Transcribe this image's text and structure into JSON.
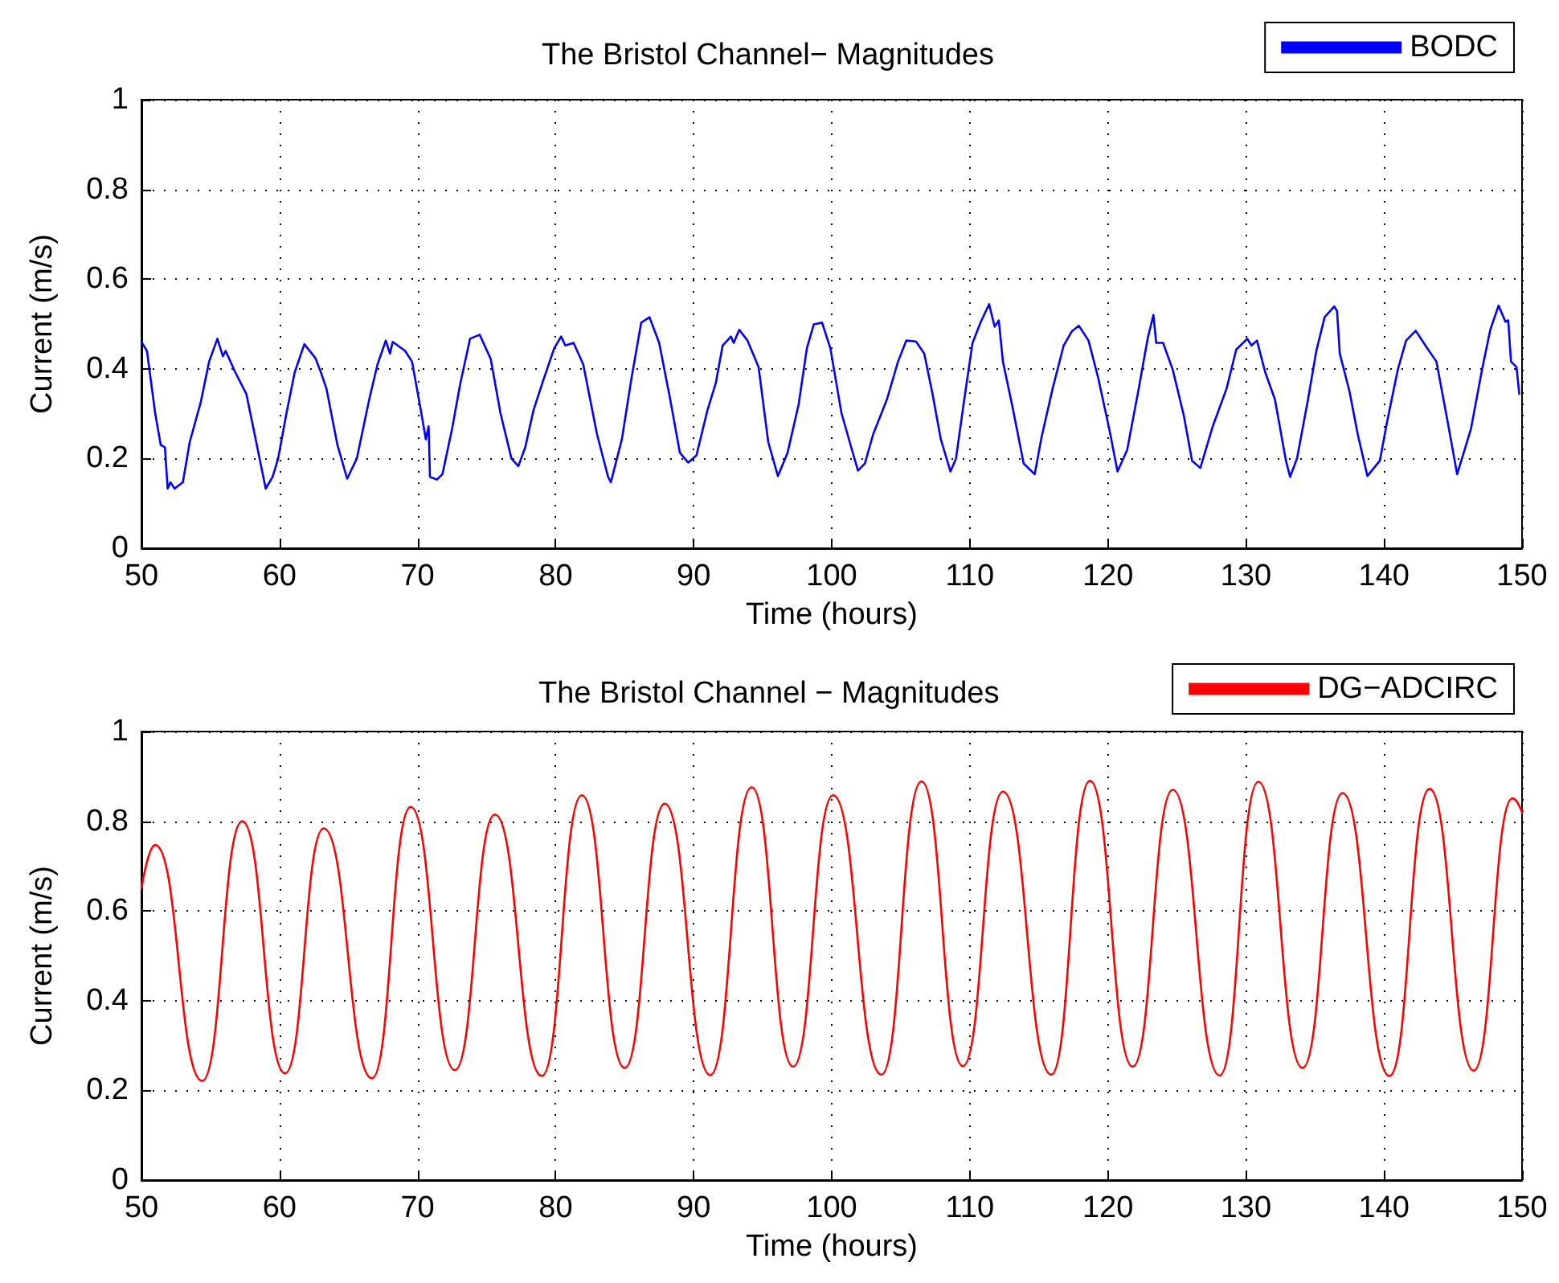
{
  "chart_data": [
    {
      "type": "line",
      "title": "The Bristol Channel− Magnitudes",
      "xlabel": "Time (hours)",
      "ylabel": "Current (m/s)",
      "xlim": [
        50,
        150
      ],
      "ylim": [
        0,
        1
      ],
      "xticks": [
        50,
        60,
        70,
        80,
        90,
        100,
        110,
        120,
        130,
        140,
        150
      ],
      "yticks": [
        0,
        0.2,
        0.4,
        0.6,
        0.8,
        1
      ],
      "grid": true,
      "legend": "top right",
      "marker": "none",
      "line_style": "solid",
      "series": [
        {
          "name": "BODC",
          "color": "#0000ff",
          "x": [
            50.0,
            50.4,
            51.0,
            51.4,
            51.7,
            51.9,
            52.1,
            52.4,
            53.0,
            53.5,
            54.3,
            54.9,
            55.5,
            55.9,
            56.1,
            56.8,
            57.6,
            58.2,
            59.0,
            59.5,
            59.9,
            60.5,
            61.1,
            61.8,
            62.6,
            63.0,
            63.4,
            64.2,
            64.9,
            65.6,
            66.5,
            67.1,
            67.7,
            68.0,
            68.2,
            69.1,
            69.6,
            70.2,
            70.6,
            70.8,
            70.9,
            71.4,
            71.8,
            72.5,
            73.1,
            73.8,
            74.5,
            75.3,
            76.0,
            76.8,
            77.3,
            77.8,
            78.4,
            79.1,
            79.9,
            80.4,
            80.7,
            81.3,
            82.0,
            83.0,
            83.8,
            84.0,
            84.8,
            85.5,
            86.2,
            86.8,
            87.5,
            88.3,
            89.0,
            89.6,
            90.2,
            91.0,
            91.6,
            92.1,
            92.7,
            92.9,
            93.3,
            93.9,
            94.7,
            95.4,
            96.1,
            96.8,
            97.6,
            98.2,
            98.7,
            99.3,
            99.9,
            100.7,
            101.3,
            101.9,
            102.4,
            103.0,
            104.0,
            104.8,
            105.4,
            106.1,
            106.7,
            107.3,
            107.9,
            108.6,
            109.0,
            109.6,
            110.2,
            110.8,
            111.4,
            111.8,
            112.1,
            112.4,
            113.1,
            113.9,
            114.3,
            114.7,
            115.2,
            116.0,
            116.8,
            117.4,
            117.9,
            118.6,
            119.3,
            120.1,
            120.7,
            121.4,
            122.2,
            122.9,
            123.3,
            123.5,
            124.0,
            124.7,
            125.5,
            126.1,
            126.7,
            127.6,
            128.6,
            129.3,
            130.1,
            130.4,
            130.8,
            131.4,
            132.1,
            132.9,
            133.2,
            133.7,
            134.5,
            135.1,
            135.7,
            136.4,
            136.6,
            136.8,
            137.5,
            138.1,
            138.8,
            139.7,
            140.2,
            141.0,
            141.6,
            142.3,
            143.0,
            143.8,
            144.6,
            145.3,
            146.3,
            147.1,
            147.7,
            148.3,
            148.8,
            149.0,
            149.2,
            149.6,
            149.8
          ],
          "values": [
            0.46,
            0.44,
            0.3,
            0.23,
            0.225,
            0.133,
            0.147,
            0.133,
            0.147,
            0.237,
            0.326,
            0.416,
            0.467,
            0.428,
            0.44,
            0.392,
            0.344,
            0.254,
            0.133,
            0.159,
            0.2,
            0.3,
            0.392,
            0.455,
            0.424,
            0.392,
            0.356,
            0.23,
            0.155,
            0.2,
            0.332,
            0.41,
            0.463,
            0.434,
            0.46,
            0.44,
            0.416,
            0.314,
            0.243,
            0.272,
            0.159,
            0.153,
            0.165,
            0.266,
            0.368,
            0.467,
            0.476,
            0.422,
            0.302,
            0.2,
            0.183,
            0.225,
            0.308,
            0.374,
            0.446,
            0.472,
            0.452,
            0.458,
            0.41,
            0.254,
            0.159,
            0.147,
            0.243,
            0.38,
            0.503,
            0.515,
            0.458,
            0.332,
            0.213,
            0.191,
            0.207,
            0.308,
            0.368,
            0.452,
            0.472,
            0.458,
            0.487,
            0.463,
            0.404,
            0.237,
            0.161,
            0.213,
            0.32,
            0.446,
            0.499,
            0.503,
            0.446,
            0.302,
            0.237,
            0.173,
            0.189,
            0.254,
            0.332,
            0.416,
            0.463,
            0.461,
            0.434,
            0.344,
            0.243,
            0.171,
            0.2,
            0.332,
            0.458,
            0.505,
            0.544,
            0.494,
            0.508,
            0.416,
            0.314,
            0.189,
            0.177,
            0.165,
            0.248,
            0.356,
            0.452,
            0.484,
            0.496,
            0.463,
            0.38,
            0.266,
            0.171,
            0.219,
            0.35,
            0.47,
            0.52,
            0.458,
            0.458,
            0.398,
            0.296,
            0.195,
            0.179,
            0.272,
            0.356,
            0.443,
            0.467,
            0.452,
            0.463,
            0.392,
            0.332,
            0.195,
            0.159,
            0.2,
            0.332,
            0.44,
            0.515,
            0.539,
            0.529,
            0.434,
            0.35,
            0.254,
            0.161,
            0.195,
            0.278,
            0.398,
            0.463,
            0.485,
            0.452,
            0.416,
            0.284,
            0.165,
            0.266,
            0.398,
            0.487,
            0.541,
            0.505,
            0.508,
            0.416,
            0.404,
            0.344
          ]
        }
      ]
    },
    {
      "type": "line",
      "title": "The Bristol Channel − Magnitudes",
      "xlabel": "Time (hours)",
      "ylabel": "Current (m/s)",
      "xlim": [
        50,
        150
      ],
      "ylim": [
        0,
        1
      ],
      "xticks": [
        50,
        60,
        70,
        80,
        90,
        100,
        110,
        120,
        130,
        140,
        150
      ],
      "yticks": [
        0,
        0.2,
        0.4,
        0.6,
        0.8,
        1
      ],
      "grid": true,
      "legend": "top right",
      "marker": "none",
      "line_style": "solid",
      "series": [
        {
          "name": "DG−ADCIRC",
          "color": "#ff0000",
          "x": [
            50.0,
            51.0,
            54.4,
            57.3,
            60.4,
            63.2,
            66.7,
            69.5,
            72.7,
            75.6,
            79.0,
            81.9,
            85.0,
            87.9,
            91.2,
            94.2,
            97.2,
            100.1,
            103.6,
            106.5,
            109.5,
            112.4,
            115.9,
            118.7,
            121.8,
            124.7,
            128.1,
            130.9,
            134.1,
            137.0,
            140.4,
            143.3,
            146.5,
            149.3,
            150.0
          ],
          "values": [
            0.65,
            0.747,
            0.221,
            0.8,
            0.238,
            0.784,
            0.227,
            0.832,
            0.245,
            0.815,
            0.232,
            0.858,
            0.25,
            0.839,
            0.234,
            0.876,
            0.253,
            0.858,
            0.235,
            0.889,
            0.254,
            0.866,
            0.235,
            0.89,
            0.253,
            0.87,
            0.233,
            0.888,
            0.25,
            0.863,
            0.232,
            0.872,
            0.244,
            0.851,
            0.82
          ]
        }
      ]
    }
  ]
}
